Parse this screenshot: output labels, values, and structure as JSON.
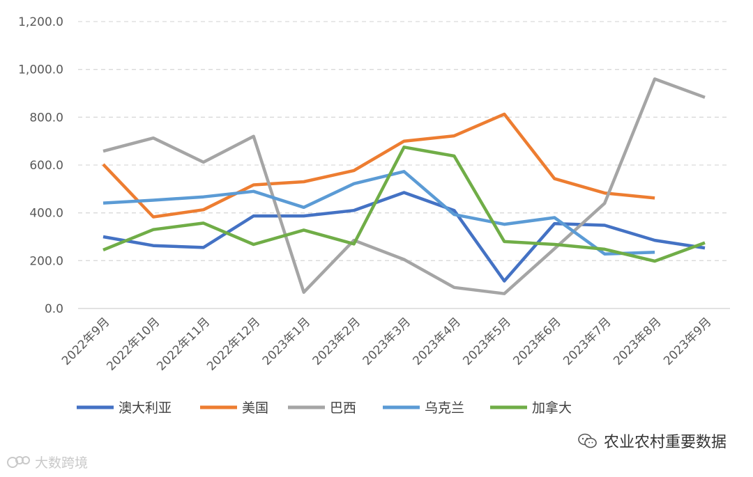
{
  "chart_data": {
    "type": "line",
    "title": "",
    "xlabel": "",
    "ylabel": "",
    "categories": [
      "2022年9月",
      "2022年10月",
      "2022年11月",
      "2022年12月",
      "2023年1月",
      "2023年2月",
      "2023年3月",
      "2023年4月",
      "2023年5月",
      "2023年6月",
      "2023年7月",
      "2023年8月",
      "2023年9月"
    ],
    "ylim": [
      0,
      1200
    ],
    "yticks": [
      "0.0",
      "200.0",
      "400.0",
      "600.0",
      "800.0",
      "1,000.0",
      "1,200.0"
    ],
    "grid": true,
    "legend_position": "bottom",
    "series": [
      {
        "name": "澳大利亚",
        "color": "#4472C4",
        "values": [
          300,
          263,
          255,
          387,
          387,
          410,
          485,
          410,
          115,
          355,
          348,
          285,
          253
        ]
      },
      {
        "name": "美国",
        "color": "#ED7D31",
        "values": [
          603,
          383,
          413,
          517,
          530,
          577,
          700,
          722,
          813,
          543,
          483,
          462,
          null
        ]
      },
      {
        "name": "巴西",
        "color": "#A5A5A5",
        "values": [
          658,
          713,
          612,
          720,
          68,
          285,
          205,
          88,
          62,
          250,
          440,
          960,
          883
        ]
      },
      {
        "name": "乌克兰",
        "color": "#5B9BD5",
        "values": [
          441,
          453,
          467,
          490,
          423,
          522,
          573,
          393,
          352,
          380,
          228,
          235,
          null
        ]
      },
      {
        "name": "加拿大",
        "color": "#70AD47",
        "values": [
          245,
          330,
          357,
          268,
          328,
          270,
          675,
          638,
          280,
          268,
          248,
          198,
          275
        ]
      }
    ]
  },
  "watermarks": {
    "right": "农业农村重要数据",
    "left": "大数跨境"
  }
}
